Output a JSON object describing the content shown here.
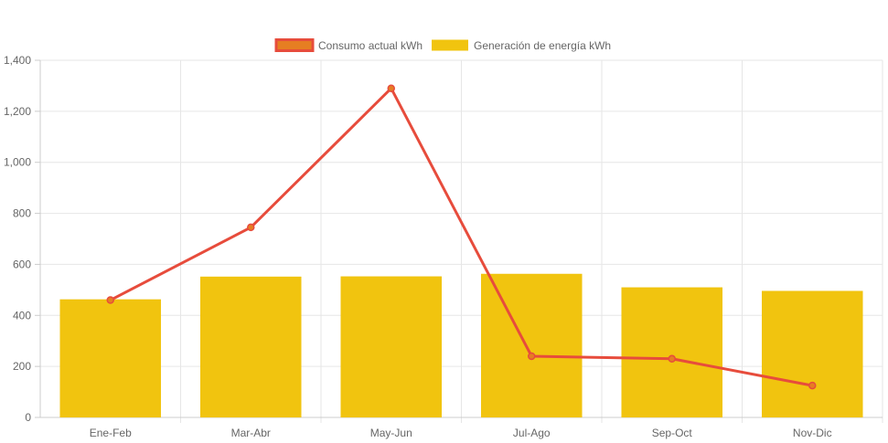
{
  "chart_data": {
    "type": "bar",
    "title": "",
    "xlabel": "",
    "ylabel": "",
    "ylim": [
      0,
      1400
    ],
    "y_ticks": [
      0,
      200,
      400,
      600,
      800,
      1000,
      1200,
      1400
    ],
    "y_tick_labels": [
      "0",
      "200",
      "400",
      "600",
      "800",
      "1,000",
      "1,200",
      "1,400"
    ],
    "categories": [
      "Ene-Feb",
      "Mar-Abr",
      "May-Jun",
      "Jul-Ago",
      "Sep-Oct",
      "Nov-Dic"
    ],
    "grid": true,
    "legend_position": "top",
    "series": [
      {
        "name": "Consumo actual kWh",
        "type": "line",
        "values": [
          460,
          745,
          1290,
          240,
          230,
          125
        ],
        "color": "#e74c3c",
        "fill_color": "#e67e22"
      },
      {
        "name": "Generación de energía kWh",
        "type": "bar",
        "values": [
          463,
          552,
          553,
          563,
          510,
          496
        ],
        "color": "#f1c40f"
      }
    ]
  }
}
